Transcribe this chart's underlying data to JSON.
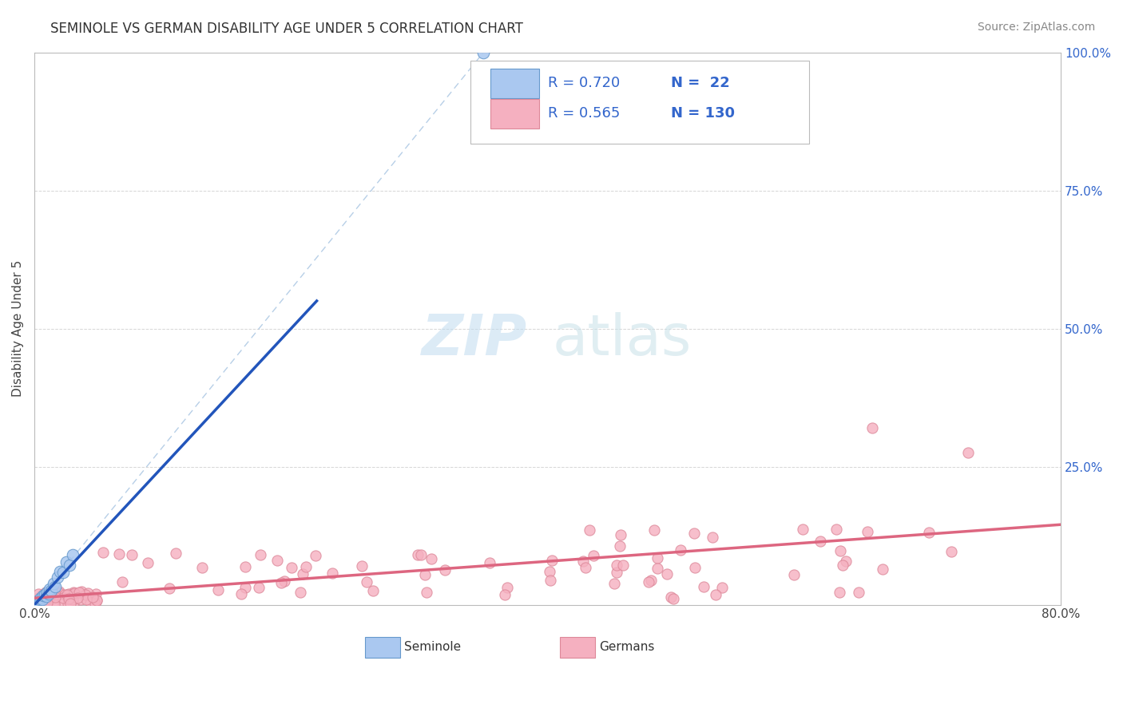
{
  "title": "SEMINOLE VS GERMAN DISABILITY AGE UNDER 5 CORRELATION CHART",
  "source_text": "Source: ZipAtlas.com",
  "ylabel": "Disability Age Under 5",
  "xlim": [
    0.0,
    0.8
  ],
  "ylim": [
    0.0,
    1.0
  ],
  "grid_color": "#cccccc",
  "background_color": "#ffffff",
  "seminole_color": "#aac8f0",
  "seminole_edge_color": "#6699cc",
  "seminole_line_color": "#2255bb",
  "german_color": "#f5b0c0",
  "german_edge_color": "#dd8899",
  "german_line_color": "#dd6680",
  "dash_color": "#99bbdd",
  "watermark_zip": "ZIP",
  "watermark_atlas": "atlas",
  "watermark_color_zip": "#b8d8f0",
  "watermark_color_atlas": "#c8dfe8",
  "legend_r1": "R = 0.720",
  "legend_n1": "N =  22",
  "legend_r2": "R = 0.565",
  "legend_n2": "N = 130",
  "legend_text_color": "#3366cc",
  "title_fontsize": 12,
  "source_fontsize": 10
}
